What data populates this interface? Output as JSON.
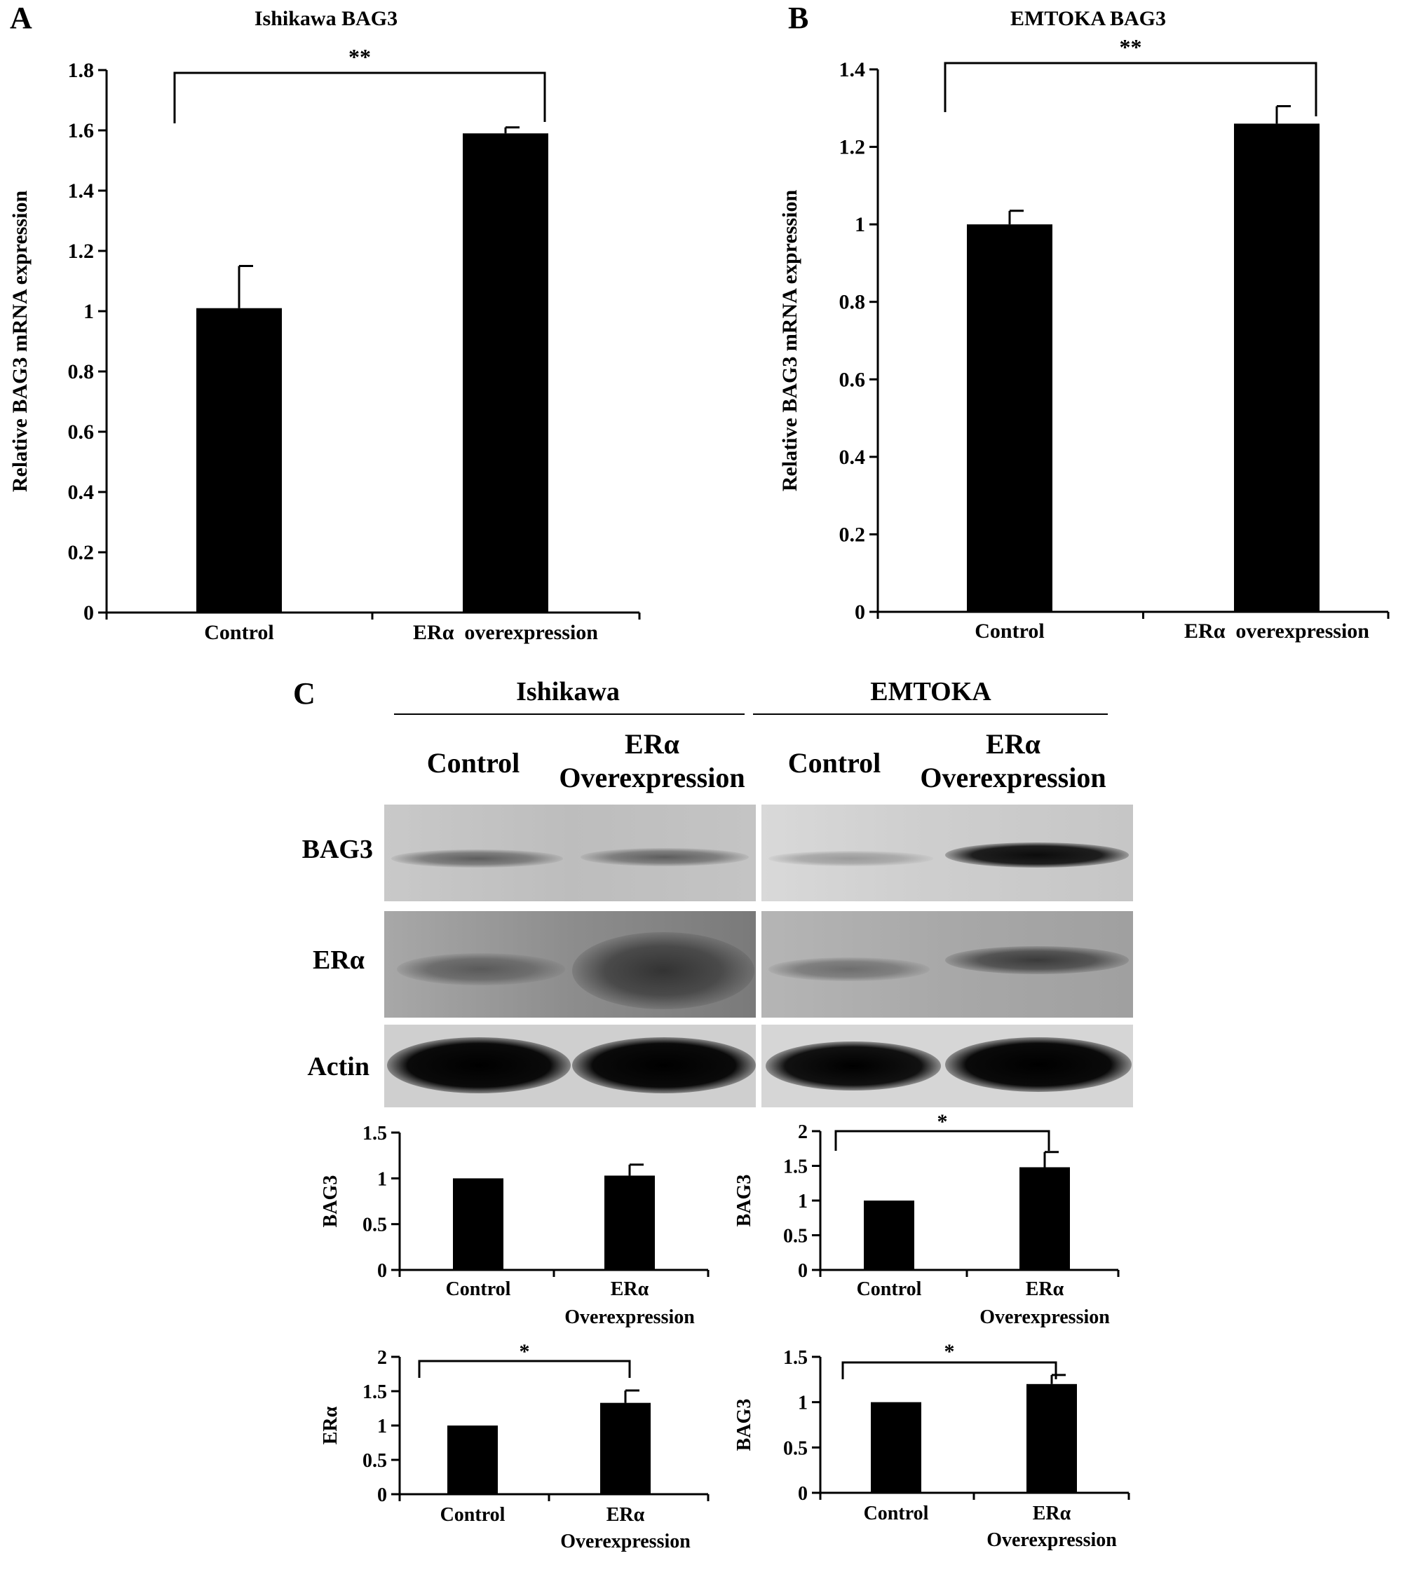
{
  "panels": {
    "A": "A",
    "B": "B",
    "C": "C"
  },
  "blot": {
    "groups": [
      {
        "name": "Ishikawa",
        "lanes": [
          [
            "Control"
          ],
          [
            "ERα",
            "Overexpression"
          ]
        ]
      },
      {
        "name": "EMTOKA",
        "lanes": [
          [
            "Control"
          ],
          [
            "ERα",
            "Overexpression"
          ]
        ]
      }
    ],
    "rows": [
      "BAG3",
      "ERα",
      "Actin"
    ]
  },
  "chart_data": [
    {
      "id": "A",
      "type": "bar",
      "title": "Ishikawa BAG3",
      "ylabel": "Relative BAG3 mRNA expression",
      "categories": [
        "Control",
        "ERα  overexpression"
      ],
      "values": [
        1.01,
        1.59
      ],
      "errors": [
        0.14,
        0.02
      ],
      "ylim": [
        0,
        1.8
      ],
      "yticks": [
        "0",
        "0.2",
        "0.4",
        "0.6",
        "0.8",
        "1",
        "1.2",
        "1.4",
        "1.6",
        "1.8"
      ],
      "significance": "**",
      "bar_color": "#000000"
    },
    {
      "id": "B",
      "type": "bar",
      "title": "EMTOKA BAG3",
      "ylabel": "Relative BAG3 mRNA expression",
      "categories": [
        "Control",
        "ERα  overexpression"
      ],
      "values": [
        1.0,
        1.26
      ],
      "errors": [
        0.035,
        0.045
      ],
      "ylim": [
        0,
        1.4
      ],
      "yticks": [
        "0",
        "0.2",
        "0.4",
        "0.6",
        "0.8",
        "1",
        "1.2",
        "1.4"
      ],
      "significance": "**",
      "bar_color": "#000000"
    },
    {
      "id": "C1",
      "type": "bar",
      "title": "",
      "ylabel": "BAG3",
      "categories": [
        [
          "Control"
        ],
        [
          "ERα",
          "Overexpression"
        ]
      ],
      "values": [
        1.0,
        1.03
      ],
      "errors": [
        0,
        0.12
      ],
      "ylim": [
        0,
        1.5
      ],
      "yticks": [
        "0",
        "0.5",
        "1",
        "1.5"
      ],
      "significance": "",
      "bar_color": "#000000"
    },
    {
      "id": "C2",
      "type": "bar",
      "title": "",
      "ylabel": "BAG3",
      "categories": [
        [
          "Control"
        ],
        [
          "ERα",
          "Overexpression"
        ]
      ],
      "values": [
        1.0,
        1.48
      ],
      "errors": [
        0,
        0.22
      ],
      "ylim": [
        0,
        2
      ],
      "yticks": [
        "0",
        "0.5",
        "1",
        "1.5",
        "2"
      ],
      "significance": "*",
      "bar_color": "#000000"
    },
    {
      "id": "C3",
      "type": "bar",
      "title": "",
      "ylabel": "ERα",
      "categories": [
        [
          "Control"
        ],
        [
          "ERα",
          "Overexpression"
        ]
      ],
      "values": [
        1.0,
        1.33
      ],
      "errors": [
        0,
        0.18
      ],
      "ylim": [
        0,
        2
      ],
      "yticks": [
        "0",
        "0.5",
        "1",
        "1.5",
        "2"
      ],
      "significance": "*",
      "bar_color": "#000000"
    },
    {
      "id": "C4",
      "type": "bar",
      "title": "",
      "ylabel": "BAG3",
      "categories": [
        [
          "Control"
        ],
        [
          "ERα",
          "Overexpression"
        ]
      ],
      "values": [
        1.0,
        1.2
      ],
      "errors": [
        0,
        0.1
      ],
      "ylim": [
        0,
        1.5
      ],
      "yticks": [
        "0",
        "0.5",
        "1",
        "1.5"
      ],
      "significance": "*",
      "bar_color": "#000000"
    }
  ]
}
